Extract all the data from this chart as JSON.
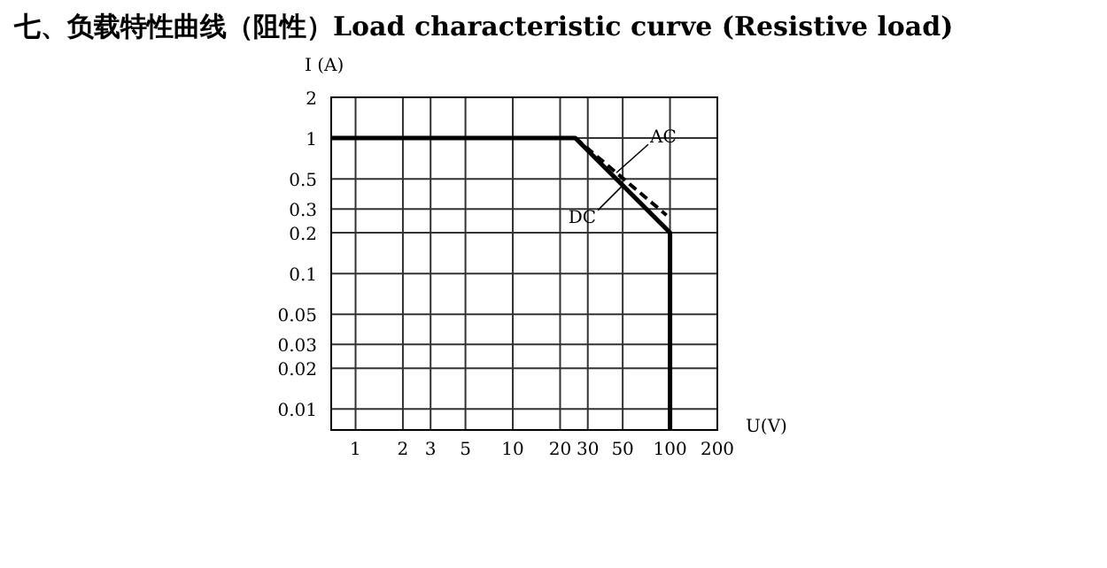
{
  "chart_data": {
    "type": "line",
    "title": "七、负载特性曲线（阻性）Load characteristic curve (Resistive load)",
    "xlabel": "U(V)",
    "ylabel": "I (A)",
    "log": "xy",
    "grid": true,
    "xlim": [
      0.7,
      200
    ],
    "ylim": [
      0.007,
      2
    ],
    "xticks": [
      1,
      2,
      3,
      5,
      10,
      20,
      30,
      50,
      100,
      200
    ],
    "yticks": [
      0.01,
      0.02,
      0.03,
      0.05,
      0.1,
      0.2,
      0.3,
      0.5,
      1,
      2
    ],
    "series": [
      {
        "name": "AC",
        "color": "#000000",
        "line_style": "dashed",
        "x": [
          25,
          95
        ],
        "values": [
          1,
          0.27
        ]
      },
      {
        "name": "DC",
        "color": "#000000",
        "line_style": "solid",
        "x": [
          0.7,
          25,
          100,
          100
        ],
        "values": [
          1,
          1,
          0.2,
          0.007
        ]
      }
    ]
  }
}
